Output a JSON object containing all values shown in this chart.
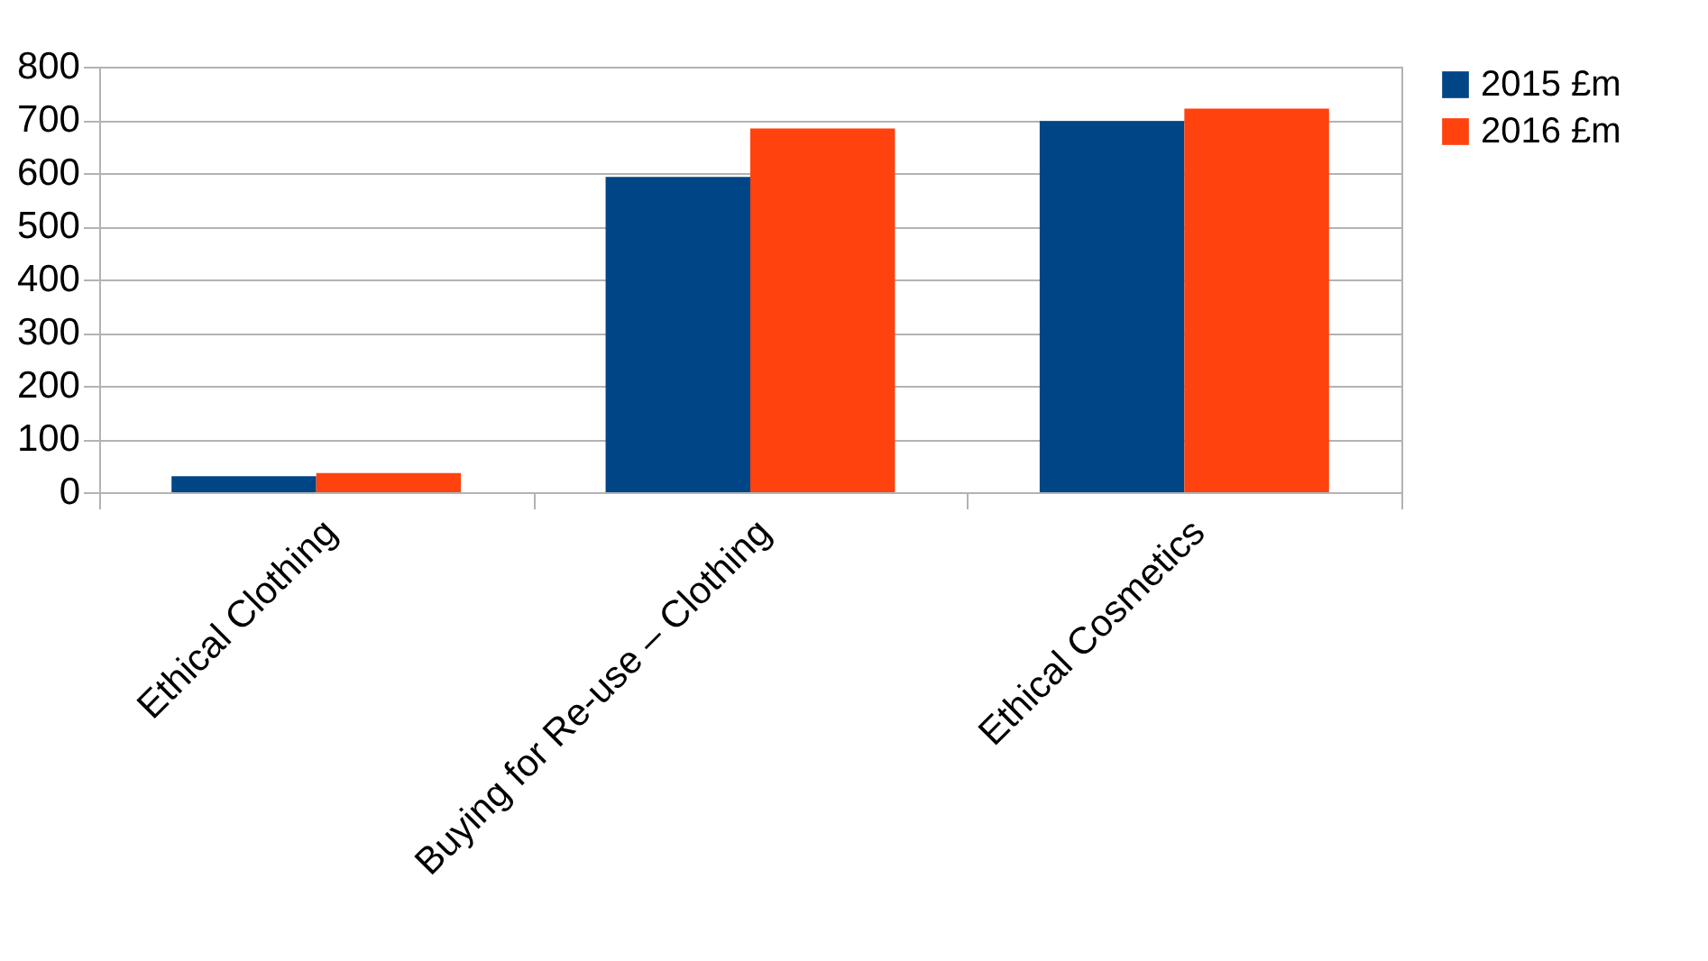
{
  "chart_data": {
    "type": "bar",
    "categories": [
      "Ethical Clothing",
      "Buying for Re-use – Clothing",
      "Ethical Cosmetics"
    ],
    "series": [
      {
        "name": "2015 £m",
        "color": "#004586",
        "values": [
          30,
          593,
          698
        ]
      },
      {
        "name": "2016 £m",
        "color": "#ff420e",
        "values": [
          36,
          684,
          721
        ]
      }
    ],
    "ylim": [
      0,
      800
    ],
    "yticks": [
      0,
      100,
      200,
      300,
      400,
      500,
      600,
      700,
      800
    ],
    "grid": "y",
    "legend": "right"
  }
}
